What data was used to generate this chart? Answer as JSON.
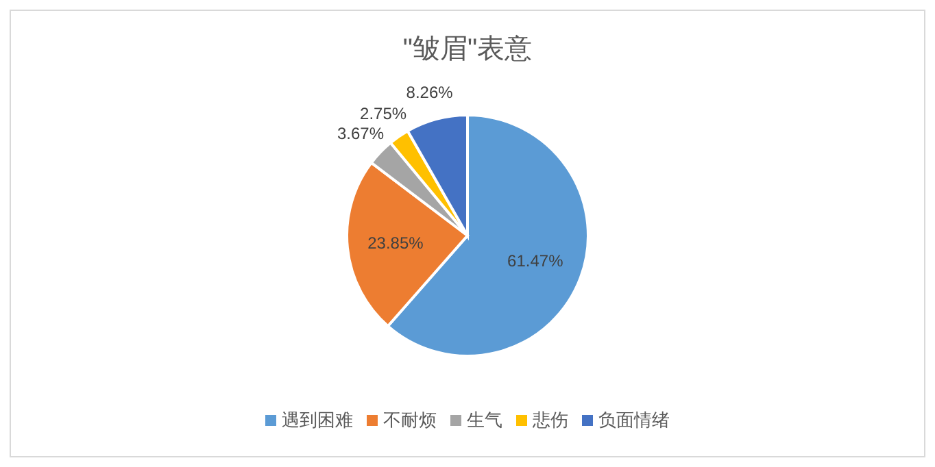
{
  "chart_data": {
    "type": "pie",
    "title": "\"皱眉\"表意",
    "categories": [
      "遇到困难",
      "不耐烦",
      "生气",
      "悲伤",
      "负面情绪"
    ],
    "values": [
      61.47,
      23.85,
      3.67,
      2.75,
      8.26
    ],
    "colors": [
      "#5b9bd5",
      "#ed7d31",
      "#a5a5a5",
      "#ffc000",
      "#4472c4"
    ],
    "value_labels": [
      "61.47%",
      "23.85%",
      "3.67%",
      "2.75%",
      "8.26%"
    ],
    "legend": "bottom"
  }
}
